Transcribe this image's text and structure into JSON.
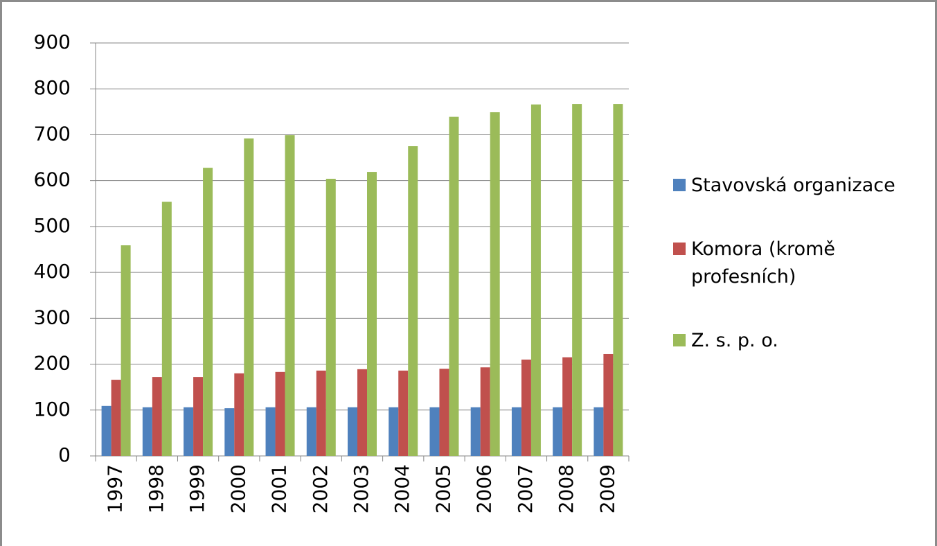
{
  "chart_data": {
    "type": "bar",
    "categories": [
      "1997",
      "1998",
      "1999",
      "2000",
      "2001",
      "2002",
      "2003",
      "2004",
      "2005",
      "2006",
      "2007",
      "2008",
      "2009"
    ],
    "series": [
      {
        "name": "Stavovská organizace",
        "color": "#4f81bd",
        "values": [
          109,
          106,
          106,
          104,
          106,
          106,
          106,
          106,
          106,
          106,
          106,
          106,
          106
        ]
      },
      {
        "name": "Komora (kromě profesních)",
        "color": "#c0504d",
        "values": [
          166,
          172,
          172,
          180,
          183,
          186,
          189,
          186,
          190,
          193,
          210,
          215,
          222
        ]
      },
      {
        "name": "Z. s. p. o.",
        "color": "#9bbb59",
        "values": [
          459,
          554,
          628,
          692,
          699,
          604,
          619,
          675,
          739,
          749,
          766,
          767,
          767
        ]
      }
    ],
    "ylim": [
      0,
      900
    ],
    "yticks": [
      0,
      100,
      200,
      300,
      400,
      500,
      600,
      700,
      800,
      900
    ],
    "grid": true
  }
}
